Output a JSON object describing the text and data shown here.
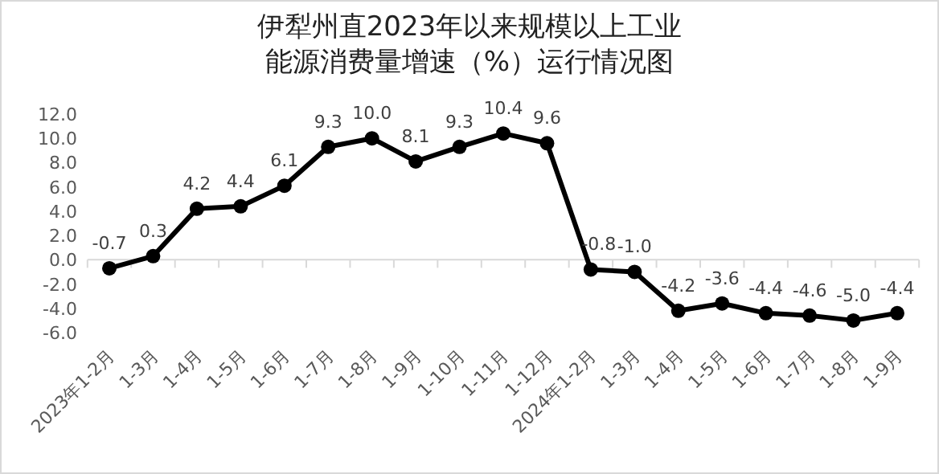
{
  "chart_data": {
    "type": "line",
    "title": "伊犁州直2023年以来规模以上工业能源消费量增速（%）运行情况图",
    "categories": [
      "2023年1-2月",
      "1-3月",
      "1-4月",
      "1-5月",
      "1-6月",
      "1-7月",
      "1-8月",
      "1-9月",
      "1-10月",
      "1-11月",
      "1-12月",
      "2024年1-2月",
      "1-3月",
      "1-4月",
      "1-5月",
      "1-6月",
      "1-7月",
      "1-8月",
      "1-9月"
    ],
    "values": [
      -0.7,
      0.3,
      4.2,
      4.4,
      6.1,
      9.3,
      10.0,
      8.1,
      9.3,
      10.4,
      9.6,
      -0.8,
      -1.0,
      -4.2,
      -3.6,
      -4.4,
      -4.6,
      -5.0,
      -4.4
    ],
    "value_labels": [
      "-0.7",
      "0.3",
      "4.2",
      "4.4",
      "6.1",
      "9.3",
      "10.0",
      "8.1",
      "9.3",
      "10.4",
      "9.6",
      "-0.8",
      "-1.0",
      "-4.2",
      "-3.6",
      "-4.4",
      "-4.6",
      "-5.0",
      "-4.4"
    ],
    "color": "#000000",
    "marker": "circle",
    "line_style": "solid",
    "ylim": [
      -6,
      12
    ],
    "yticks": [
      {
        "value": -6,
        "label": "-6.0"
      },
      {
        "value": -4,
        "label": "-4.0"
      },
      {
        "value": -2,
        "label": "-2.0"
      },
      {
        "value": 0,
        "label": "0.0"
      },
      {
        "value": 2,
        "label": "2.0"
      },
      {
        "value": 4,
        "label": "4.0"
      },
      {
        "value": 6,
        "label": "6.0"
      },
      {
        "value": 8,
        "label": "8.0"
      },
      {
        "value": 10,
        "label": "10.0"
      },
      {
        "value": 12,
        "label": "12.0"
      }
    ]
  }
}
